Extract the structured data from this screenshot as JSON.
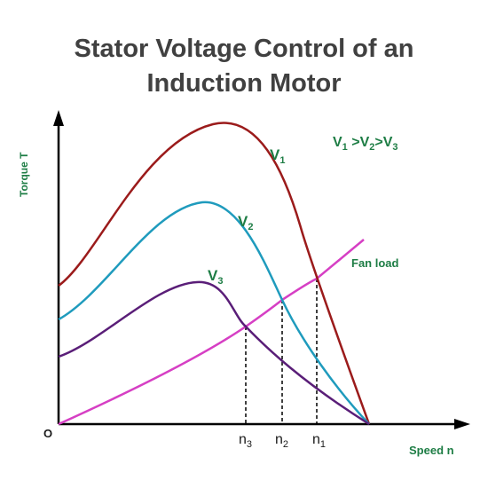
{
  "title": {
    "line1": "Stator Voltage Control of an",
    "line2": "Induction Motor"
  },
  "axes": {
    "y_label": "Torque T",
    "x_label": "Speed n",
    "origin_label": "O"
  },
  "relation": {
    "parts": [
      "V",
      "1",
      " >V",
      "2",
      ">V",
      "3"
    ]
  },
  "curves": [
    {
      "id": "V1",
      "label": "V",
      "sub": "1",
      "color": "#9b1b1b"
    },
    {
      "id": "V2",
      "label": "V",
      "sub": "2",
      "color": "#1f9bbd"
    },
    {
      "id": "V3",
      "label": "V",
      "sub": "3",
      "color": "#5a1e78"
    }
  ],
  "load": {
    "label": "Fan load",
    "color": "#d63fc4"
  },
  "speed_points": [
    {
      "label": "n",
      "sub": "3"
    },
    {
      "label": "n",
      "sub": "2"
    },
    {
      "label": "n",
      "sub": "1"
    }
  ],
  "colors": {
    "axis": "#000000",
    "labels": "#1e7d45",
    "title": "#404040"
  }
}
